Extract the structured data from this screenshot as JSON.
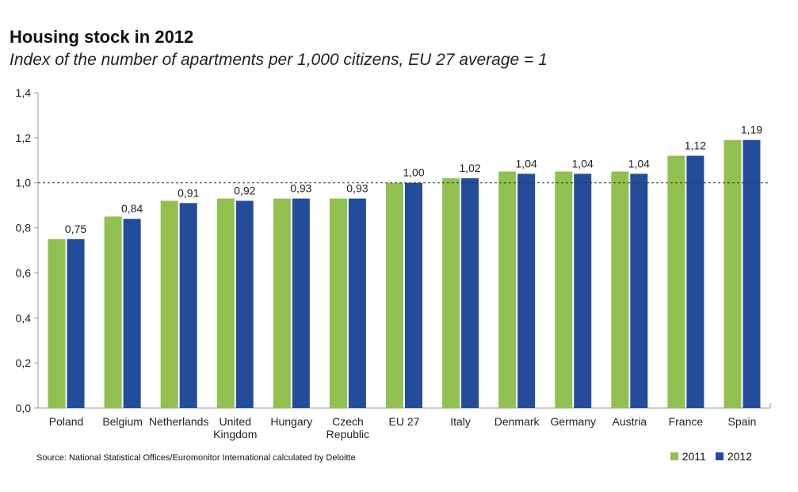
{
  "header": {
    "title": "Housing stock in 2012",
    "subtitle": "Index of the number of apartments per 1,000 citizens, EU 27 average = 1"
  },
  "footer": {
    "source": "Source: National Statistical Offices/Euromonitor International calculated by Deloitte"
  },
  "colors": {
    "series_2011": "#92c050",
    "series_2012": "#234d9b",
    "reference_line": "#333333"
  },
  "chart_data": {
    "type": "bar",
    "title": "Housing stock in 2012",
    "subtitle": "Index of the number of apartments per 1,000 citizens, EU 27 average = 1",
    "categories": [
      [
        "Poland"
      ],
      [
        "Belgium"
      ],
      [
        "Netherlands"
      ],
      [
        "United",
        "Kingdom"
      ],
      [
        "Hungary"
      ],
      [
        "Czech",
        "Republic"
      ],
      [
        "EU 27"
      ],
      [
        "Italy"
      ],
      [
        "Denmark"
      ],
      [
        "Germany"
      ],
      [
        "Austria"
      ],
      [
        "France"
      ],
      [
        "Spain"
      ]
    ],
    "series": [
      {
        "name": "2011",
        "color": "#92c050",
        "values": [
          0.75,
          0.85,
          0.92,
          0.93,
          0.93,
          0.93,
          1.0,
          1.02,
          1.05,
          1.05,
          1.05,
          1.12,
          1.19
        ]
      },
      {
        "name": "2012",
        "color": "#234d9b",
        "values": [
          0.75,
          0.84,
          0.91,
          0.92,
          0.93,
          0.93,
          1.0,
          1.02,
          1.04,
          1.04,
          1.04,
          1.12,
          1.19
        ]
      }
    ],
    "data_labels": [
      "0,75",
      "0,84",
      "0,91",
      "0,92",
      "0,93",
      "0,93",
      "1,00",
      "1,02",
      "1,04",
      "1,04",
      "1,04",
      "1,12",
      "1,19"
    ],
    "ylim": [
      0,
      1.4
    ],
    "yticks": [
      0,
      0.2,
      0.4,
      0.6,
      0.8,
      1.0,
      1.2,
      1.4
    ],
    "ytick_labels": [
      "0,0",
      "0,2",
      "0,4",
      "0,6",
      "0,8",
      "1,0",
      "1,2",
      "1,4"
    ],
    "reference_line": 1.0,
    "grid": false,
    "legend_position": "bottom-right"
  }
}
